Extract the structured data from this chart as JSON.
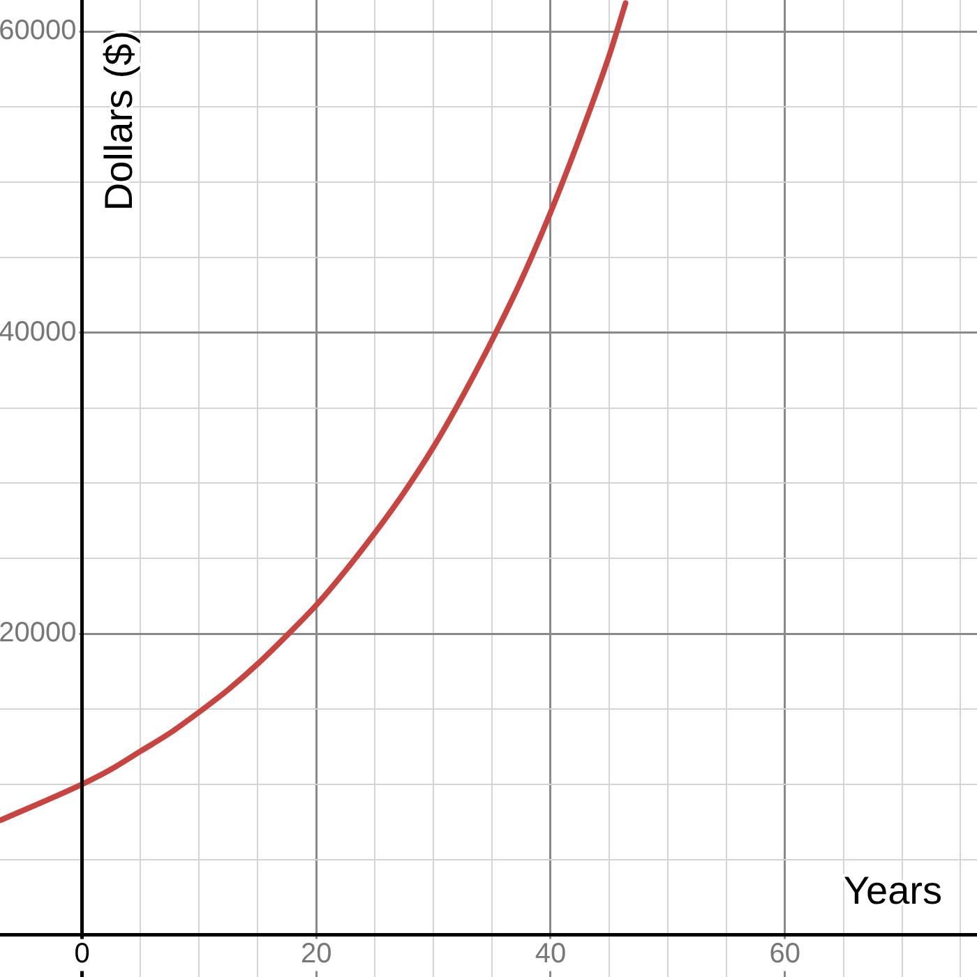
{
  "chart_data": {
    "type": "line",
    "xlabel": "Years",
    "ylabel": "Dollars ($)",
    "series": [
      {
        "color": "#c74440",
        "x": [
          -7,
          0,
          2.5,
          5,
          7.5,
          10,
          12.5,
          15,
          17.5,
          20,
          22.5,
          25,
          27.5,
          30,
          32.5,
          35,
          37.5,
          40,
          42.5,
          45,
          46.4
        ],
        "values": [
          7600,
          10000,
          11000,
          12200,
          13400,
          14800,
          16300,
          18000,
          19900,
          21900,
          24200,
          26700,
          29400,
          32400,
          35800,
          39500,
          43500,
          48000,
          53000,
          58400,
          61900
        ]
      }
    ],
    "xlim": [
      -7,
      76.4
    ],
    "ylim": [
      -2800,
      62100
    ],
    "xticks": [
      {
        "value": 0,
        "label": "0"
      },
      {
        "value": 5,
        "label": null
      },
      {
        "value": 10,
        "label": null
      },
      {
        "value": 15,
        "label": null
      },
      20,
      {
        "value": 25,
        "label": null
      },
      {
        "value": 30,
        "label": null
      },
      {
        "value": 35,
        "label": null
      },
      40,
      {
        "value": 45,
        "label": null
      },
      {
        "value": 50,
        "label": null
      },
      {
        "value": 55,
        "label": null
      },
      60,
      {
        "value": 65,
        "label": null
      },
      {
        "value": 70,
        "label": null
      },
      {
        "value": 75,
        "label": null
      }
    ],
    "yticks": [
      {
        "value": 0,
        "label": null
      },
      {
        "value": 5000,
        "label": null
      },
      {
        "value": 10000,
        "label": null
      },
      {
        "value": 15000,
        "label": null
      },
      20000,
      {
        "value": 25000,
        "label": null
      },
      {
        "value": 30000,
        "label": null
      },
      {
        "value": 35000,
        "label": null
      },
      40000,
      {
        "value": 45000,
        "label": null
      },
      {
        "value": 50000,
        "label": null
      },
      {
        "value": 55000,
        "label": null
      },
      60000
    ],
    "grid": true,
    "legend": false,
    "marker": "none",
    "line_style": "solid"
  }
}
